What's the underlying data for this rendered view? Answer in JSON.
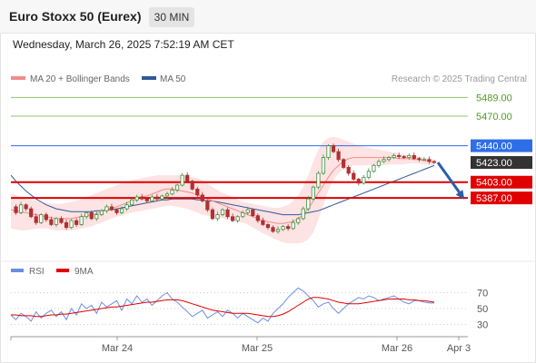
{
  "header": {
    "title": "Euro Stoxx 50 (Eurex)",
    "timeframe": "30 MIN",
    "datetime": "Wednesday, March 26, 2025 7:52:19 AM CET"
  },
  "colors": {
    "bollinger": "#f28b8b",
    "bollinger_fill": "#fde3e3",
    "ma50": "#2f5a9a",
    "resistance": "#8fc46e",
    "resistance_text": "#4e9a23",
    "pivot": "#2e6ee6",
    "support": "#e00000",
    "last_price": "#333333",
    "candle_up": "#3f8f3f",
    "candle_down": "#b03030",
    "arrow": "#2a5fa8",
    "rsi": "#6a8fe0",
    "rsi_ma": "#e00000"
  },
  "chart_data": [
    {
      "type": "candlestick",
      "legend": [
        {
          "label": "MA 20 + Bollinger Bands",
          "color": "#f28b8b"
        },
        {
          "label": "MA 50",
          "color": "#2f5a9a"
        }
      ],
      "watermark": "Research © 2025 Trading Central",
      "ylim": [
        5330,
        5505
      ],
      "x_ticks": [
        "Mar 24",
        "Mar 25",
        "Mar 26",
        "Apr 3"
      ],
      "levels": [
        {
          "value": 5489.0,
          "label": "5489.00",
          "kind": "resistance"
        },
        {
          "value": 5470.0,
          "label": "5470.00",
          "kind": "resistance"
        },
        {
          "value": 5440.0,
          "label": "5440.00",
          "kind": "pivot"
        },
        {
          "value": 5423.0,
          "label": "5423.00",
          "kind": "last"
        },
        {
          "value": 5403.0,
          "label": "5403.00",
          "kind": "support"
        },
        {
          "value": 5387.0,
          "label": "5387.00",
          "kind": "support"
        }
      ],
      "ohlc_close": [
        5378,
        5372,
        5380,
        5376,
        5368,
        5362,
        5370,
        5365,
        5360,
        5366,
        5362,
        5357,
        5364,
        5360,
        5368,
        5372,
        5366,
        5370,
        5374,
        5378,
        5375,
        5372,
        5376,
        5380,
        5385,
        5388,
        5386,
        5384,
        5388,
        5386,
        5389,
        5391,
        5395,
        5400,
        5410,
        5404,
        5396,
        5390,
        5384,
        5375,
        5366,
        5370,
        5375,
        5368,
        5364,
        5368,
        5372,
        5375,
        5369,
        5364,
        5360,
        5357,
        5353,
        5355,
        5358,
        5356,
        5362,
        5366,
        5376,
        5386,
        5398,
        5412,
        5428,
        5440,
        5434,
        5426,
        5418,
        5412,
        5406,
        5402,
        5408,
        5414,
        5420,
        5424,
        5426,
        5428,
        5430,
        5429,
        5428,
        5430,
        5427,
        5426,
        5426,
        5424,
        5423
      ],
      "ma20": [
        5375,
        5374,
        5373,
        5372,
        5371,
        5370,
        5369,
        5368,
        5367,
        5366,
        5366,
        5366,
        5366,
        5367,
        5368,
        5369,
        5370,
        5371,
        5373,
        5375,
        5377,
        5378,
        5380,
        5382,
        5384,
        5386,
        5388,
        5389,
        5391,
        5393,
        5395,
        5396,
        5396,
        5395,
        5394,
        5393,
        5392,
        5390,
        5388,
        5386,
        5384,
        5382,
        5380,
        5378,
        5376,
        5374,
        5372,
        5370,
        5368,
        5366,
        5364,
        5363,
        5362,
        5361,
        5361,
        5362,
        5363,
        5366,
        5370,
        5376,
        5384,
        5392,
        5400,
        5408,
        5415,
        5420,
        5424,
        5427,
        5428,
        5428,
        5428,
        5428,
        5428,
        5428,
        5428,
        5428,
        5428,
        5427,
        5427,
        5427,
        5426,
        5426,
        5425,
        5424,
        5423
      ],
      "bb_upper": [
        5392,
        5390,
        5388,
        5386,
        5385,
        5384,
        5383,
        5382,
        5381,
        5381,
        5381,
        5382,
        5383,
        5384,
        5386,
        5388,
        5390,
        5392,
        5394,
        5396,
        5398,
        5400,
        5402,
        5403,
        5405,
        5406,
        5407,
        5408,
        5409,
        5410,
        5410,
        5410,
        5410,
        5410,
        5410,
        5409,
        5408,
        5407,
        5405,
        5402,
        5398,
        5395,
        5392,
        5390,
        5388,
        5385,
        5383,
        5382,
        5381,
        5380,
        5379,
        5378,
        5377,
        5377,
        5378,
        5380,
        5384,
        5390,
        5398,
        5410,
        5424,
        5436,
        5444,
        5448,
        5449,
        5448,
        5446,
        5444,
        5442,
        5440,
        5439,
        5438,
        5437,
        5436,
        5435,
        5434,
        5433,
        5432,
        5431,
        5430,
        5430,
        5429,
        5428,
        5427,
        5426
      ],
      "bb_lower": [
        5356,
        5355,
        5354,
        5354,
        5355,
        5356,
        5356,
        5356,
        5355,
        5354,
        5354,
        5354,
        5354,
        5355,
        5356,
        5357,
        5358,
        5360,
        5362,
        5364,
        5366,
        5368,
        5369,
        5371,
        5372,
        5373,
        5374,
        5375,
        5376,
        5377,
        5378,
        5379,
        5379,
        5378,
        5377,
        5376,
        5374,
        5372,
        5370,
        5369,
        5368,
        5367,
        5366,
        5365,
        5364,
        5363,
        5362,
        5360,
        5357,
        5354,
        5351,
        5349,
        5346,
        5344,
        5342,
        5341,
        5341,
        5341,
        5342,
        5345,
        5352,
        5365,
        5380,
        5395,
        5405,
        5412,
        5416,
        5418,
        5420,
        5420,
        5420,
        5420,
        5420,
        5420,
        5420,
        5421,
        5421,
        5421,
        5421,
        5422,
        5422,
        5422,
        5421,
        5420,
        5419
      ],
      "ma50": [
        5410,
        5404,
        5399,
        5394,
        5390,
        5386,
        5383,
        5380,
        5378,
        5376,
        5375,
        5374,
        5373,
        5373,
        5373,
        5373,
        5373,
        5374,
        5374,
        5375,
        5375,
        5376,
        5377,
        5378,
        5379,
        5380,
        5381,
        5382,
        5383,
        5384,
        5385,
        5385,
        5386,
        5386,
        5386,
        5386,
        5386,
        5385,
        5385,
        5384,
        5384,
        5383,
        5382,
        5381,
        5380,
        5379,
        5378,
        5377,
        5376,
        5375,
        5374,
        5373,
        5372,
        5371,
        5370,
        5370,
        5370,
        5370,
        5371,
        5372,
        5373,
        5374,
        5376,
        5378,
        5380,
        5382,
        5384,
        5386,
        5388,
        5390,
        5392,
        5394,
        5396,
        5398,
        5400,
        5402,
        5404,
        5406,
        5408,
        5410,
        5412,
        5414,
        5416,
        5418,
        5420
      ],
      "forecast": {
        "from": 5423.0,
        "to": 5387.0
      }
    },
    {
      "type": "line",
      "legend": [
        {
          "label": "RSI",
          "color": "#6a8fe0"
        },
        {
          "label": "9MA",
          "color": "#e00000"
        }
      ],
      "ylim": [
        18,
        82
      ],
      "y_ticks": [
        70,
        50,
        30
      ],
      "rsi": [
        42,
        36,
        44,
        40,
        34,
        46,
        38,
        44,
        48,
        40,
        46,
        36,
        50,
        42,
        56,
        50,
        54,
        44,
        58,
        52,
        56,
        60,
        48,
        62,
        56,
        66,
        58,
        62,
        54,
        60,
        66,
        70,
        62,
        58,
        52,
        46,
        40,
        44,
        48,
        38,
        42,
        46,
        40,
        48,
        44,
        38,
        44,
        40,
        36,
        32,
        38,
        34,
        44,
        50,
        56,
        64,
        70,
        76,
        72,
        66,
        60,
        52,
        56,
        58,
        50,
        44,
        50,
        56,
        60,
        64,
        62,
        66,
        64,
        60,
        62,
        64,
        66,
        62,
        58,
        56,
        60,
        60,
        58,
        57,
        57
      ],
      "rsi_ma": [
        42,
        42,
        41,
        41,
        41,
        40,
        40,
        41,
        42,
        42,
        43,
        43,
        44,
        45,
        46,
        47,
        48,
        49,
        50,
        51,
        52,
        52,
        53,
        54,
        55,
        56,
        57,
        58,
        58,
        59,
        60,
        61,
        61,
        61,
        60,
        58,
        56,
        54,
        52,
        50,
        48,
        47,
        46,
        45,
        44,
        44,
        44,
        44,
        43,
        42,
        41,
        40,
        40,
        41,
        43,
        46,
        50,
        54,
        58,
        62,
        64,
        64,
        63,
        62,
        60,
        58,
        57,
        56,
        56,
        56,
        57,
        58,
        59,
        60,
        61,
        62,
        62,
        62,
        62,
        61,
        61,
        60,
        60,
        59,
        58
      ]
    }
  ]
}
